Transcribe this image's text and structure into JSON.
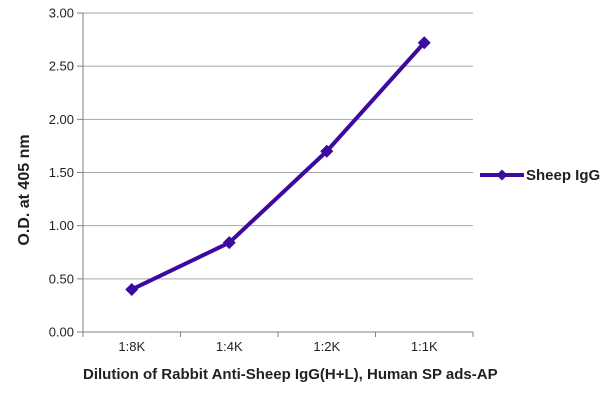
{
  "chart_data": {
    "type": "line",
    "title": "",
    "categories": [
      "1:8K",
      "1:4K",
      "1:2K",
      "1:1K"
    ],
    "series": [
      {
        "name": "Sheep IgG",
        "values": [
          0.4,
          0.84,
          1.7,
          2.72
        ],
        "color": "#3b0ba0",
        "marker": "diamond"
      }
    ],
    "xlabel": "Dilution of Rabbit Anti-Sheep IgG(H+L), Human SP ads-AP",
    "ylabel": "O.D. at 405 nm",
    "ylim": [
      0,
      3
    ],
    "ytick_step": 0.5,
    "ytick_labels": [
      "0.00",
      "0.50",
      "1.00",
      "1.50",
      "2.00",
      "2.50",
      "3.00"
    ],
    "grid": "horizontal-major",
    "legend": {
      "position": "right",
      "entries": [
        "Sheep IgG"
      ]
    },
    "colors": {
      "gridline": "#a6a6a6",
      "axis": "#808080",
      "text": "#231f20",
      "background": "#ffffff"
    }
  }
}
